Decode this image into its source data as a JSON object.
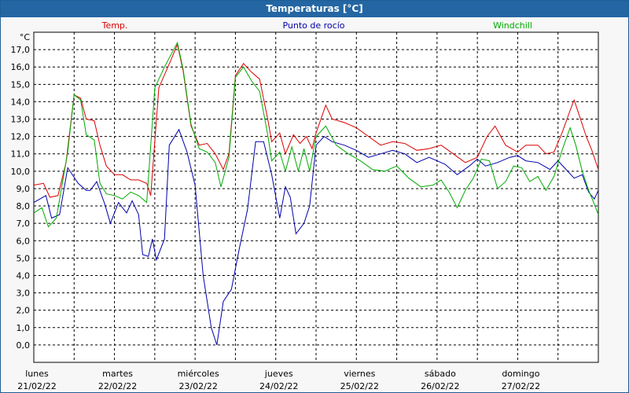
{
  "title": "Temperaturas [°C]",
  "chart_data": {
    "type": "line",
    "title": "Temperaturas [°C]",
    "ylabel": "°C",
    "ylim": [
      -1,
      18
    ],
    "y_ticks": [
      "0,0",
      "1,0",
      "2,0",
      "3,0",
      "4,0",
      "5,0",
      "6,0",
      "7,0",
      "8,0",
      "9,0",
      "10,0",
      "11,0",
      "12,0",
      "13,0",
      "14,0",
      "15,0",
      "16,0",
      "17,0"
    ],
    "x_days": [
      {
        "day": "lunes",
        "date": "21/02/22"
      },
      {
        "day": "martes",
        "date": "22/02/22"
      },
      {
        "day": "miércoles",
        "date": "23/02/22"
      },
      {
        "day": "jueves",
        "date": "24/02/22"
      },
      {
        "day": "viernes",
        "date": "25/02/22"
      },
      {
        "day": "sábado",
        "date": "26/02/22"
      },
      {
        "day": "domingo",
        "date": "27/02/22"
      }
    ],
    "x_unit": "days since lunes 21/02/22 00:00",
    "xlim": [
      0,
      7
    ],
    "grid": true,
    "series": [
      {
        "name": "Temp.",
        "color": "#dd0000",
        "points": [
          [
            0,
            9.2
          ],
          [
            0.12,
            9.3
          ],
          [
            0.2,
            8.5
          ],
          [
            0.3,
            8.6
          ],
          [
            0.4,
            10.5
          ],
          [
            0.5,
            14.4
          ],
          [
            0.58,
            14.2
          ],
          [
            0.65,
            13.0
          ],
          [
            0.75,
            12.9
          ],
          [
            0.82,
            11.5
          ],
          [
            0.9,
            10.3
          ],
          [
            1.0,
            9.8
          ],
          [
            1.1,
            9.8
          ],
          [
            1.2,
            9.5
          ],
          [
            1.3,
            9.5
          ],
          [
            1.4,
            9.3
          ],
          [
            1.45,
            8.6
          ],
          [
            1.55,
            14.8
          ],
          [
            1.7,
            16.4
          ],
          [
            1.78,
            17.3
          ],
          [
            1.85,
            15.8
          ],
          [
            1.95,
            12.6
          ],
          [
            2.05,
            11.5
          ],
          [
            2.15,
            11.6
          ],
          [
            2.25,
            11.0
          ],
          [
            2.35,
            10.1
          ],
          [
            2.42,
            11.0
          ],
          [
            2.5,
            15.5
          ],
          [
            2.6,
            16.2
          ],
          [
            2.7,
            15.7
          ],
          [
            2.8,
            15.3
          ],
          [
            2.9,
            13.0
          ],
          [
            2.95,
            11.7
          ],
          [
            3.05,
            12.2
          ],
          [
            3.12,
            11.0
          ],
          [
            3.22,
            12.1
          ],
          [
            3.3,
            11.6
          ],
          [
            3.38,
            12.0
          ],
          [
            3.45,
            11.3
          ],
          [
            3.5,
            12.2
          ],
          [
            3.62,
            13.8
          ],
          [
            3.7,
            13.0
          ],
          [
            3.85,
            12.8
          ],
          [
            4.0,
            12.5
          ],
          [
            4.15,
            12.0
          ],
          [
            4.3,
            11.5
          ],
          [
            4.45,
            11.7
          ],
          [
            4.6,
            11.6
          ],
          [
            4.75,
            11.2
          ],
          [
            4.9,
            11.3
          ],
          [
            5.05,
            11.5
          ],
          [
            5.2,
            11.0
          ],
          [
            5.35,
            10.5
          ],
          [
            5.5,
            10.8
          ],
          [
            5.62,
            12.0
          ],
          [
            5.72,
            12.6
          ],
          [
            5.85,
            11.5
          ],
          [
            6.0,
            11.1
          ],
          [
            6.1,
            11.5
          ],
          [
            6.25,
            11.5
          ],
          [
            6.35,
            11.0
          ],
          [
            6.45,
            11.1
          ],
          [
            6.55,
            12.2
          ],
          [
            6.65,
            13.5
          ],
          [
            6.7,
            14.1
          ],
          [
            6.75,
            13.4
          ],
          [
            6.85,
            12.0
          ],
          [
            6.92,
            11.2
          ],
          [
            7.0,
            10.1
          ]
        ]
      },
      {
        "name": "Punto de rocío",
        "color": "#0000aa",
        "points": [
          [
            0,
            8.2
          ],
          [
            0.15,
            8.6
          ],
          [
            0.22,
            7.3
          ],
          [
            0.32,
            7.5
          ],
          [
            0.42,
            10.2
          ],
          [
            0.55,
            9.3
          ],
          [
            0.65,
            8.9
          ],
          [
            0.7,
            8.9
          ],
          [
            0.78,
            9.4
          ],
          [
            0.88,
            8.1
          ],
          [
            0.95,
            7.0
          ],
          [
            1.05,
            8.2
          ],
          [
            1.15,
            7.6
          ],
          [
            1.22,
            8.3
          ],
          [
            1.3,
            7.5
          ],
          [
            1.35,
            5.2
          ],
          [
            1.42,
            5.1
          ],
          [
            1.47,
            6.1
          ],
          [
            1.52,
            4.9
          ],
          [
            1.62,
            6.1
          ],
          [
            1.68,
            11.5
          ],
          [
            1.8,
            12.4
          ],
          [
            1.9,
            11.1
          ],
          [
            2.0,
            9.2
          ],
          [
            2.1,
            4.0
          ],
          [
            2.2,
            1.0
          ],
          [
            2.27,
            0.0
          ],
          [
            2.35,
            2.5
          ],
          [
            2.45,
            3.2
          ],
          [
            2.55,
            5.6
          ],
          [
            2.65,
            7.8
          ],
          [
            2.75,
            11.7
          ],
          [
            2.85,
            11.7
          ],
          [
            2.95,
            9.8
          ],
          [
            3.05,
            7.3
          ],
          [
            3.12,
            9.1
          ],
          [
            3.18,
            8.5
          ],
          [
            3.25,
            6.4
          ],
          [
            3.35,
            7.0
          ],
          [
            3.42,
            8.0
          ],
          [
            3.5,
            11.5
          ],
          [
            3.6,
            12.0
          ],
          [
            3.7,
            11.7
          ],
          [
            3.85,
            11.5
          ],
          [
            4.0,
            11.2
          ],
          [
            4.15,
            10.8
          ],
          [
            4.3,
            11.0
          ],
          [
            4.45,
            11.2
          ],
          [
            4.6,
            11.0
          ],
          [
            4.75,
            10.5
          ],
          [
            4.9,
            10.8
          ],
          [
            5.0,
            10.6
          ],
          [
            5.1,
            10.4
          ],
          [
            5.25,
            9.8
          ],
          [
            5.4,
            10.3
          ],
          [
            5.5,
            10.7
          ],
          [
            5.6,
            10.3
          ],
          [
            5.75,
            10.5
          ],
          [
            5.9,
            10.8
          ],
          [
            6.0,
            10.9
          ],
          [
            6.1,
            10.6
          ],
          [
            6.25,
            10.5
          ],
          [
            6.4,
            10.1
          ],
          [
            6.5,
            10.6
          ],
          [
            6.6,
            10.1
          ],
          [
            6.7,
            9.6
          ],
          [
            6.8,
            9.8
          ],
          [
            6.88,
            8.8
          ],
          [
            6.95,
            8.4
          ],
          [
            7.0,
            8.9
          ]
        ]
      },
      {
        "name": "Windchill",
        "color": "#00aa00",
        "points": [
          [
            0,
            7.6
          ],
          [
            0.1,
            7.9
          ],
          [
            0.18,
            6.8
          ],
          [
            0.28,
            7.3
          ],
          [
            0.42,
            11.1
          ],
          [
            0.5,
            14.4
          ],
          [
            0.58,
            14.1
          ],
          [
            0.65,
            12.1
          ],
          [
            0.75,
            11.8
          ],
          [
            0.82,
            9.3
          ],
          [
            0.9,
            8.7
          ],
          [
            1.0,
            8.6
          ],
          [
            1.1,
            8.4
          ],
          [
            1.2,
            8.8
          ],
          [
            1.3,
            8.6
          ],
          [
            1.4,
            8.2
          ],
          [
            1.5,
            14.8
          ],
          [
            1.62,
            16.0
          ],
          [
            1.78,
            17.4
          ],
          [
            1.85,
            15.9
          ],
          [
            1.95,
            12.7
          ],
          [
            2.05,
            11.3
          ],
          [
            2.15,
            11.1
          ],
          [
            2.25,
            10.5
          ],
          [
            2.32,
            9.1
          ],
          [
            2.42,
            10.8
          ],
          [
            2.5,
            15.4
          ],
          [
            2.6,
            16.0
          ],
          [
            2.7,
            15.2
          ],
          [
            2.8,
            14.6
          ],
          [
            2.9,
            12.1
          ],
          [
            2.95,
            10.6
          ],
          [
            3.05,
            11.1
          ],
          [
            3.12,
            10.0
          ],
          [
            3.2,
            11.4
          ],
          [
            3.28,
            10.0
          ],
          [
            3.35,
            11.3
          ],
          [
            3.42,
            10.0
          ],
          [
            3.5,
            12.0
          ],
          [
            3.62,
            12.6
          ],
          [
            3.75,
            11.5
          ],
          [
            3.9,
            11.0
          ],
          [
            4.05,
            10.6
          ],
          [
            4.2,
            10.1
          ],
          [
            4.35,
            10.0
          ],
          [
            4.5,
            10.3
          ],
          [
            4.65,
            9.6
          ],
          [
            4.8,
            9.1
          ],
          [
            4.95,
            9.2
          ],
          [
            5.05,
            9.5
          ],
          [
            5.15,
            8.8
          ],
          [
            5.25,
            7.9
          ],
          [
            5.35,
            8.9
          ],
          [
            5.45,
            9.6
          ],
          [
            5.55,
            10.7
          ],
          [
            5.65,
            10.6
          ],
          [
            5.75,
            9.0
          ],
          [
            5.85,
            9.4
          ],
          [
            5.95,
            10.3
          ],
          [
            6.05,
            10.2
          ],
          [
            6.15,
            9.4
          ],
          [
            6.25,
            9.7
          ],
          [
            6.35,
            8.9
          ],
          [
            6.45,
            9.7
          ],
          [
            6.55,
            11.2
          ],
          [
            6.65,
            12.5
          ],
          [
            6.72,
            11.5
          ],
          [
            6.8,
            10.0
          ],
          [
            6.88,
            8.9
          ],
          [
            6.95,
            8.1
          ],
          [
            7.0,
            7.5
          ]
        ]
      }
    ]
  }
}
